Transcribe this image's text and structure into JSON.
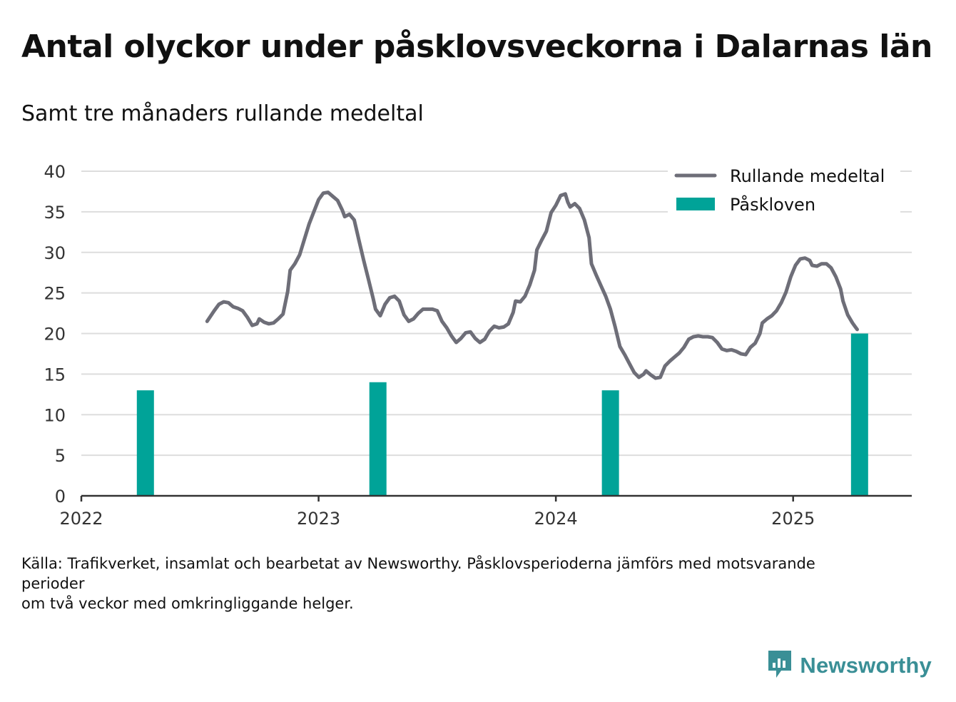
{
  "header": {
    "title": "Antal olyckor under påsklovsveckorna i Dalarnas län",
    "subtitle": "Samt tre månaders rullande medeltal"
  },
  "footer": {
    "source_line1": "Källa: Trafikverket, insamlat och bearbetat av Newsworthy. Påsklovsperioderna jämförs med motsvarande perioder",
    "source_line2": "om två veckor med omkringliggande helger.",
    "brand": "Newsworthy"
  },
  "colors": {
    "line": "#6e6e78",
    "bar": "#00a398",
    "grid": "#dddddd",
    "axis": "#333333",
    "text": "#111111",
    "brand": "#3a8f96"
  },
  "chart_data": {
    "type": "bar+line",
    "title": "Antal olyckor under påsklovsveckorna i Dalarnas län",
    "subtitle": "Samt tre månaders rullande medeltal",
    "ylim": [
      0,
      40
    ],
    "yticks": [
      0,
      5,
      10,
      15,
      20,
      25,
      30,
      35,
      40
    ],
    "xlim": [
      2022.0,
      2025.5
    ],
    "xticks": [
      {
        "value": 2022,
        "label": "2022"
      },
      {
        "value": 2023,
        "label": "2023"
      },
      {
        "value": 2024,
        "label": "2024"
      },
      {
        "value": 2025,
        "label": "2025"
      }
    ],
    "grid": true,
    "legend": {
      "position": "top-right",
      "entries": [
        {
          "label": "Rullande medeltal",
          "kind": "line"
        },
        {
          "label": "Påskloven",
          "kind": "bar"
        }
      ]
    },
    "bars": {
      "name": "Påskloven",
      "points": [
        {
          "x": 2022.27,
          "value": 13
        },
        {
          "x": 2023.25,
          "value": 14
        },
        {
          "x": 2024.23,
          "value": 13
        },
        {
          "x": 2025.28,
          "value": 20
        }
      ]
    },
    "line": {
      "name": "Rullande medeltal",
      "points": [
        [
          2022.53,
          21.5
        ],
        [
          2022.56,
          22.8
        ],
        [
          2022.58,
          23.6
        ],
        [
          2022.6,
          23.9
        ],
        [
          2022.62,
          23.8
        ],
        [
          2022.64,
          23.3
        ],
        [
          2022.66,
          23.1
        ],
        [
          2022.68,
          22.8
        ],
        [
          2022.7,
          22.0
        ],
        [
          2022.72,
          21.0
        ],
        [
          2022.74,
          21.2
        ],
        [
          2022.75,
          21.8
        ],
        [
          2022.77,
          21.4
        ],
        [
          2022.79,
          21.2
        ],
        [
          2022.81,
          21.3
        ],
        [
          2022.83,
          21.8
        ],
        [
          2022.85,
          22.4
        ],
        [
          2022.87,
          25.2
        ],
        [
          2022.88,
          27.8
        ],
        [
          2022.9,
          28.6
        ],
        [
          2022.92,
          29.7
        ],
        [
          2022.94,
          31.6
        ],
        [
          2022.96,
          33.5
        ],
        [
          2022.98,
          35.0
        ],
        [
          2023.0,
          36.5
        ],
        [
          2023.02,
          37.3
        ],
        [
          2023.04,
          37.4
        ],
        [
          2023.06,
          36.9
        ],
        [
          2023.08,
          36.4
        ],
        [
          2023.1,
          35.2
        ],
        [
          2023.11,
          34.4
        ],
        [
          2023.13,
          34.7
        ],
        [
          2023.15,
          34.0
        ],
        [
          2023.17,
          31.5
        ],
        [
          2023.19,
          29.0
        ],
        [
          2023.21,
          26.7
        ],
        [
          2023.23,
          24.3
        ],
        [
          2023.24,
          23.0
        ],
        [
          2023.26,
          22.2
        ],
        [
          2023.28,
          23.6
        ],
        [
          2023.3,
          24.4
        ],
        [
          2023.32,
          24.6
        ],
        [
          2023.34,
          24.0
        ],
        [
          2023.36,
          22.3
        ],
        [
          2023.38,
          21.5
        ],
        [
          2023.4,
          21.8
        ],
        [
          2023.42,
          22.5
        ],
        [
          2023.44,
          23.0
        ],
        [
          2023.46,
          23.0
        ],
        [
          2023.48,
          23.0
        ],
        [
          2023.5,
          22.8
        ],
        [
          2023.52,
          21.5
        ],
        [
          2023.54,
          20.7
        ],
        [
          2023.56,
          19.7
        ],
        [
          2023.58,
          18.9
        ],
        [
          2023.6,
          19.4
        ],
        [
          2023.62,
          20.1
        ],
        [
          2023.64,
          20.2
        ],
        [
          2023.66,
          19.4
        ],
        [
          2023.68,
          18.9
        ],
        [
          2023.7,
          19.3
        ],
        [
          2023.72,
          20.3
        ],
        [
          2023.74,
          20.9
        ],
        [
          2023.76,
          20.7
        ],
        [
          2023.78,
          20.8
        ],
        [
          2023.8,
          21.2
        ],
        [
          2023.82,
          22.6
        ],
        [
          2023.83,
          24.0
        ],
        [
          2023.85,
          23.9
        ],
        [
          2023.87,
          24.6
        ],
        [
          2023.89,
          26.0
        ],
        [
          2023.91,
          27.8
        ],
        [
          2023.92,
          30.3
        ],
        [
          2023.94,
          31.5
        ],
        [
          2023.96,
          32.6
        ],
        [
          2023.98,
          34.9
        ],
        [
          2024.0,
          35.8
        ],
        [
          2024.02,
          37.0
        ],
        [
          2024.04,
          37.2
        ],
        [
          2024.05,
          36.2
        ],
        [
          2024.06,
          35.6
        ],
        [
          2024.08,
          36.0
        ],
        [
          2024.1,
          35.4
        ],
        [
          2024.12,
          34.0
        ],
        [
          2024.14,
          31.8
        ],
        [
          2024.15,
          28.6
        ],
        [
          2024.17,
          27.2
        ],
        [
          2024.19,
          25.9
        ],
        [
          2024.21,
          24.6
        ],
        [
          2024.23,
          23.0
        ],
        [
          2024.25,
          20.8
        ],
        [
          2024.27,
          18.4
        ],
        [
          2024.29,
          17.4
        ],
        [
          2024.31,
          16.3
        ],
        [
          2024.33,
          15.2
        ],
        [
          2024.35,
          14.6
        ],
        [
          2024.37,
          15.0
        ],
        [
          2024.38,
          15.4
        ],
        [
          2024.4,
          14.9
        ],
        [
          2024.42,
          14.5
        ],
        [
          2024.44,
          14.6
        ],
        [
          2024.46,
          16.0
        ],
        [
          2024.48,
          16.6
        ],
        [
          2024.5,
          17.1
        ],
        [
          2024.52,
          17.6
        ],
        [
          2024.54,
          18.3
        ],
        [
          2024.56,
          19.3
        ],
        [
          2024.58,
          19.6
        ],
        [
          2024.6,
          19.7
        ],
        [
          2024.62,
          19.6
        ],
        [
          2024.64,
          19.6
        ],
        [
          2024.66,
          19.5
        ],
        [
          2024.68,
          18.9
        ],
        [
          2024.7,
          18.1
        ],
        [
          2024.72,
          17.9
        ],
        [
          2024.74,
          18.0
        ],
        [
          2024.76,
          17.8
        ],
        [
          2024.78,
          17.5
        ],
        [
          2024.8,
          17.4
        ],
        [
          2024.82,
          18.3
        ],
        [
          2024.84,
          18.8
        ],
        [
          2024.86,
          20.0
        ],
        [
          2024.87,
          21.3
        ],
        [
          2024.89,
          21.8
        ],
        [
          2024.91,
          22.2
        ],
        [
          2024.93,
          22.8
        ],
        [
          2024.95,
          23.8
        ],
        [
          2024.97,
          25.1
        ],
        [
          2024.99,
          27.0
        ],
        [
          2025.01,
          28.4
        ],
        [
          2025.03,
          29.2
        ],
        [
          2025.05,
          29.3
        ],
        [
          2025.07,
          29.0
        ],
        [
          2025.08,
          28.4
        ],
        [
          2025.1,
          28.3
        ],
        [
          2025.12,
          28.6
        ],
        [
          2025.14,
          28.6
        ],
        [
          2025.16,
          28.1
        ],
        [
          2025.18,
          27.0
        ],
        [
          2025.2,
          25.5
        ],
        [
          2025.21,
          24.0
        ],
        [
          2025.23,
          22.3
        ],
        [
          2025.25,
          21.3
        ],
        [
          2025.26,
          20.9
        ],
        [
          2025.27,
          20.5
        ]
      ]
    }
  }
}
